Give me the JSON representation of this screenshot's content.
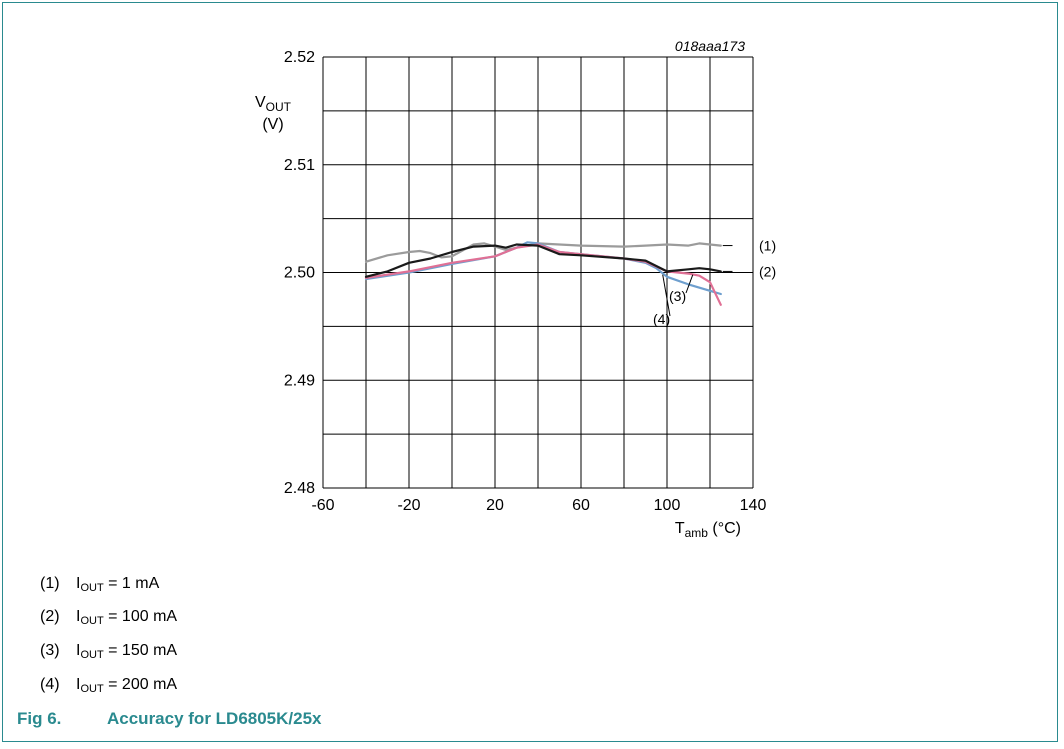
{
  "figure_id": "018aaa173",
  "caption": {
    "fig_label": "Fig 6.",
    "title": "Accuracy for LD6805K/25x"
  },
  "legend": [
    {
      "num": "(1)",
      "sym": "I",
      "sub": "OUT",
      "value": " = 1 mA"
    },
    {
      "num": "(2)",
      "sym": "I",
      "sub": "OUT",
      "value": " = 100 mA"
    },
    {
      "num": "(3)",
      "sym": "I",
      "sub": "OUT",
      "value": " = 150 mA"
    },
    {
      "num": "(4)",
      "sym": "I",
      "sub": "OUT",
      "value": " = 200 mA"
    }
  ],
  "colors": {
    "frame": "#2a8a8f",
    "caption": "#2a8a8f"
  },
  "chart_data": {
    "type": "line",
    "ylabel": {
      "main": "V",
      "sub": "OUT",
      "unit": "(V)"
    },
    "xlabel": {
      "main": "T",
      "sub": "amb",
      "unit": " (°C)"
    },
    "xlim": [
      -60,
      140
    ],
    "ylim": [
      2.48,
      2.52
    ],
    "xticks": [
      -60,
      -20,
      20,
      60,
      100,
      140
    ],
    "xtick_labels": [
      "-60",
      "-20",
      "20",
      "60",
      "100",
      "140"
    ],
    "yticks": [
      2.48,
      2.49,
      2.5,
      2.51,
      2.52
    ],
    "ytick_labels": [
      "2.48",
      "2.49",
      "2.50",
      "2.51",
      "2.52"
    ],
    "grid": true,
    "series": [
      {
        "label": "(1)",
        "color": "#9b9b9b",
        "x": [
          -40,
          -30,
          -20,
          -15,
          -10,
          -5,
          0,
          10,
          15,
          20,
          25,
          30,
          40,
          60,
          80,
          90,
          100,
          110,
          115,
          120,
          125
        ],
        "y": [
          2.501,
          2.5016,
          2.5019,
          2.502,
          2.5018,
          2.5014,
          2.5015,
          2.5026,
          2.5027,
          2.5024,
          2.5021,
          2.5023,
          2.5027,
          2.5025,
          2.5024,
          2.5025,
          2.5026,
          2.5025,
          2.5027,
          2.5026,
          2.5025
        ]
      },
      {
        "label": "(2)",
        "color": "#1a1a1a",
        "x": [
          -40,
          -30,
          -20,
          -10,
          0,
          10,
          20,
          25,
          30,
          40,
          50,
          60,
          80,
          90,
          100,
          110,
          115,
          120,
          125
        ],
        "y": [
          2.4996,
          2.5001,
          2.5009,
          2.5013,
          2.5019,
          2.5024,
          2.5025,
          2.5023,
          2.5026,
          2.5025,
          2.5017,
          2.5016,
          2.5013,
          2.5011,
          2.5001,
          2.5003,
          2.5004,
          2.5003,
          2.5001
        ]
      },
      {
        "label": "(3)",
        "color": "#e07095",
        "x": [
          -40,
          -20,
          0,
          20,
          30,
          40,
          50,
          60,
          80,
          90,
          100,
          110,
          115,
          120,
          125
        ],
        "y": [
          2.4995,
          2.5001,
          2.5009,
          2.5015,
          2.5023,
          2.5026,
          2.5019,
          2.5017,
          2.5013,
          2.501,
          2.5001,
          2.4999,
          2.4997,
          2.4991,
          2.497
        ]
      },
      {
        "label": "(4)",
        "color": "#6e9fce",
        "x": [
          -40,
          -20,
          0,
          20,
          30,
          35,
          40,
          50,
          60,
          80,
          90,
          95,
          100,
          110,
          120,
          125
        ],
        "y": [
          2.4994,
          2.5,
          2.5008,
          2.5015,
          2.5023,
          2.5028,
          2.5027,
          2.5019,
          2.5017,
          2.5013,
          2.5009,
          2.5004,
          2.4996,
          2.4989,
          2.4983,
          2.498
        ]
      }
    ],
    "annotations": [
      {
        "text": "(1)"
      },
      {
        "text": "(2)"
      },
      {
        "text": "(3)"
      },
      {
        "text": "(4)"
      }
    ]
  }
}
